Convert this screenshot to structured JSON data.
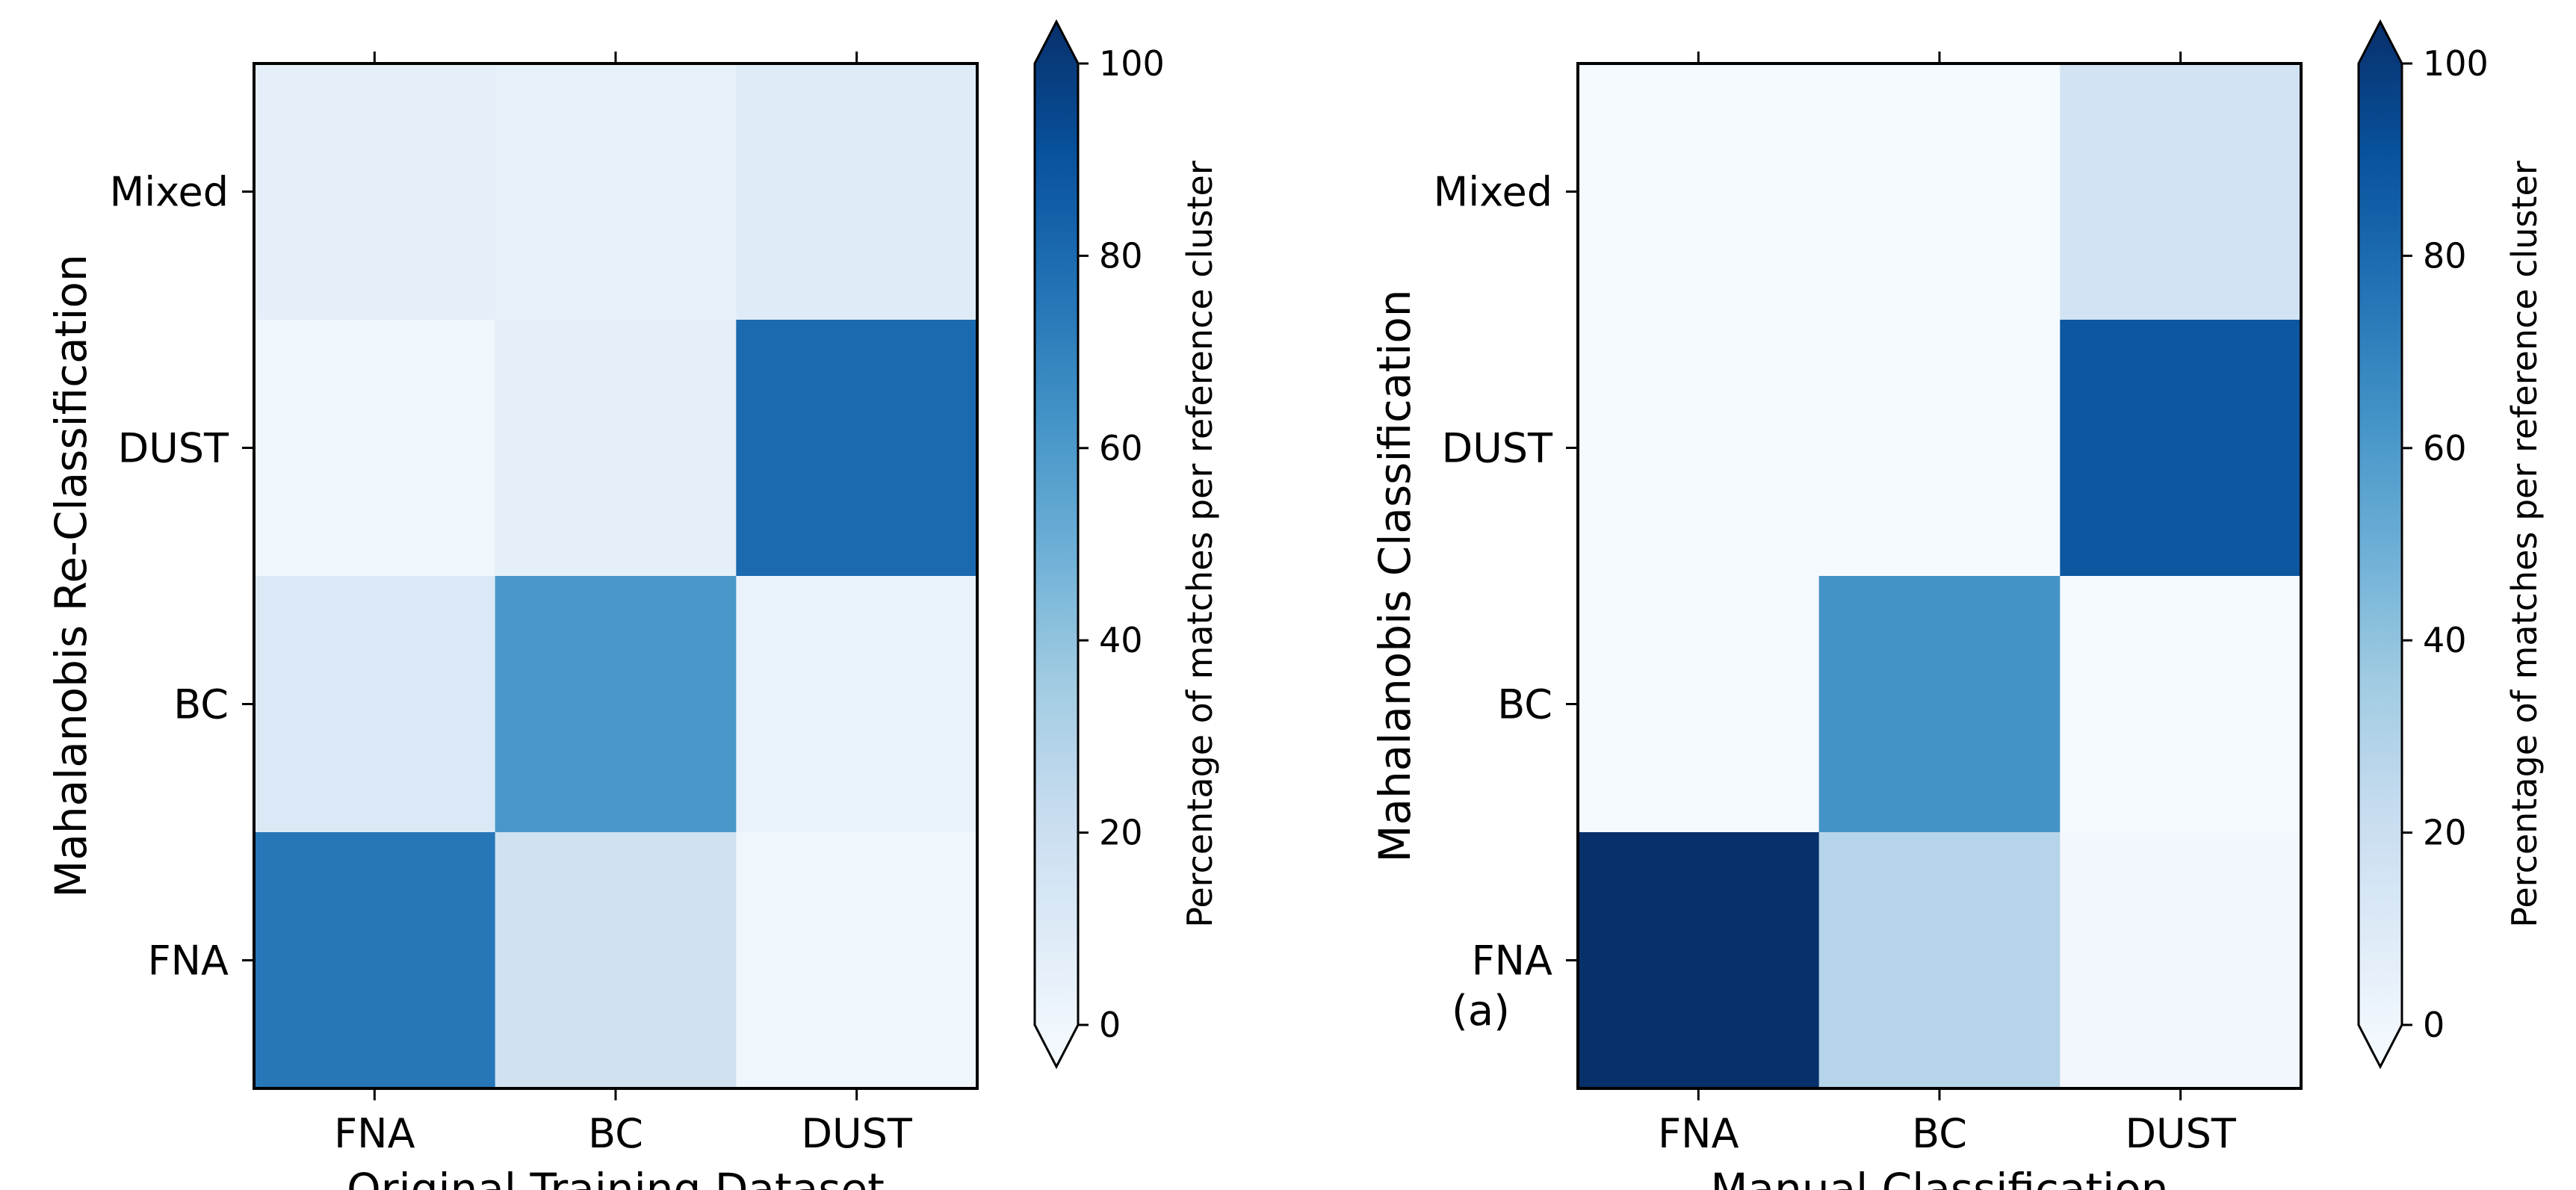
{
  "chart_data": [
    {
      "type": "heatmap",
      "xlabel": "Original Training Dataset",
      "ylabel": "Mahalanobis Re-Classification",
      "x_categories": [
        "FNA",
        "BC",
        "DUST"
      ],
      "y_categories_top_to_bottom": [
        "Mixed",
        "DUST",
        "BC",
        "FNA"
      ],
      "values_top_to_bottom": [
        [
          9,
          8,
          12
        ],
        [
          4,
          9,
          78
        ],
        [
          14,
          60,
          7
        ],
        [
          73,
          20,
          4
        ]
      ],
      "colorbar": {
        "label": "Percentage of matches per reference cluster",
        "range": [
          0,
          100
        ],
        "ticks": [
          0,
          20,
          40,
          60,
          80,
          100
        ],
        "extend": "both",
        "colormap": "Blues"
      },
      "annotation": ""
    },
    {
      "type": "heatmap",
      "xlabel": "Manual Classification",
      "ylabel": "Mahalanobis Classification",
      "x_categories": [
        "FNA",
        "BC",
        "DUST"
      ],
      "y_categories_top_to_bottom": [
        "Mixed",
        "DUST",
        "BC",
        "FNA"
      ],
      "values_top_to_bottom": [
        [
          1,
          1,
          19
        ],
        [
          1,
          1,
          85
        ],
        [
          1,
          62,
          1
        ],
        [
          100,
          30,
          3
        ]
      ],
      "colorbar": {
        "label": "Percentage of matches per reference cluster",
        "range": [
          0,
          100
        ],
        "ticks": [
          0,
          20,
          40,
          60,
          80,
          100
        ],
        "extend": "both",
        "colormap": "Blues"
      },
      "annotation": "(a)"
    }
  ]
}
